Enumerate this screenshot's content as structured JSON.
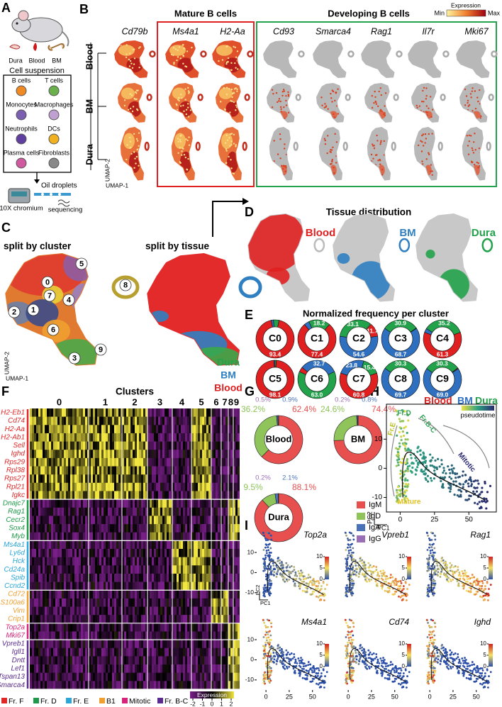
{
  "figure": {
    "panel_labels": [
      "A",
      "B",
      "C",
      "D",
      "E",
      "F",
      "G",
      "H",
      "I"
    ],
    "A": {
      "tissues": [
        "Dura",
        "Blood",
        "BM"
      ],
      "suspension": "Cell suspension",
      "cells": [
        "B cells",
        "T cells",
        "Monocytes",
        "Macrophages",
        "Neutrophils",
        "DCs",
        "Plasma cells",
        "Fibroblasts"
      ],
      "droplets": "Oil droplets",
      "chromium": "10X chromium",
      "sequencing": "sequencing"
    },
    "B": {
      "groups": [
        "Mature B cells",
        "Developing B cells"
      ],
      "genes": [
        "Cd79b",
        "Ms4a1",
        "H2-Aa",
        "Cd93",
        "Smarca4",
        "Rag1",
        "Il7r",
        "Mki67"
      ],
      "rows": [
        "Blood",
        "BM",
        "Dura"
      ],
      "legend_title": "Expression",
      "legend_ends": [
        "Min",
        "Max"
      ],
      "xlabel": "UMAP-1",
      "ylabel": "UMAP-2"
    },
    "C": {
      "titles": [
        "split by cluster",
        "split by tissue"
      ],
      "clusters": [
        "0",
        "1",
        "2",
        "3",
        "4",
        "5",
        "6",
        "7",
        "8",
        "9"
      ],
      "tissues": [
        "Dura",
        "BM",
        "Blood"
      ],
      "xlabel": "UMAP-1",
      "ylabel": "UMAP-2"
    },
    "D": {
      "title": "Tissue distribution",
      "tissues": [
        "Blood",
        "BM",
        "Dura"
      ]
    },
    "F": {
      "title": "Clusters",
      "clusters": [
        "0",
        "1",
        "2",
        "3",
        "4",
        "5",
        "6",
        "7",
        "8",
        "9"
      ],
      "legend": [
        "Fr. F",
        "Fr. D",
        "Fr. E",
        "B1",
        "Mitotic",
        "Fr. B-C"
      ],
      "legend_colors": [
        "#e02828",
        "#1f9a4a",
        "#2aa6d8",
        "#f0a030",
        "#d6247a",
        "#5b2c8f"
      ],
      "gene_groups": [
        [
          "H2-Eb1",
          "Cd74",
          "H2-Aa",
          "H2-Ab1",
          "Sell",
          "Ighd",
          "Rps29",
          "Rpl38",
          "Rps27",
          "Rpl21",
          "Igkc"
        ],
        [
          "Dnajc7",
          "Rag1",
          "Cecr2",
          "Sox4",
          "Myb"
        ],
        [
          "Ms4a1",
          "Ly6d",
          "Hck",
          "Cd24a",
          "Spib",
          "Ccnd2"
        ],
        [
          "Cd72",
          "S100a6",
          "Vim",
          "Crip1"
        ],
        [
          "Top2a",
          "Mki67"
        ],
        [
          "Vpreb1",
          "Igll1",
          "Dntt",
          "Lef1",
          "Tspan13",
          "Smarca4"
        ]
      ],
      "colorbar_title": "Expression",
      "colorbar_ticks": [
        -2,
        -1,
        0,
        1,
        2
      ]
    }
  },
  "chart_data": [
    {
      "type": "pie",
      "title": "Normalized frequency per cluster",
      "categories": [
        "C0",
        "C1",
        "C2",
        "C3",
        "C4",
        "C5",
        "C6",
        "C7",
        "C8",
        "C9"
      ],
      "series": [
        {
          "name": "Blood",
          "color": "#e02020",
          "values": [
            93.4,
            77.4,
            11.7,
            0.4,
            61.3,
            98.1,
            4.3,
            60.8,
            0,
            0.7
          ],
          "value_labels": [
            "93.4",
            "77.4",
            "11.7",
            null,
            "61.3",
            "98.1",
            null,
            "60.8",
            null,
            null
          ]
        },
        {
          "name": "BM",
          "color": "#2f6fc0",
          "values": [
            2.0,
            4.4,
            54.6,
            68.7,
            3.5,
            0.9,
            32.7,
            23.8,
            69.7,
            69.0
          ],
          "value_labels": [
            null,
            null,
            "54.6",
            "68.7",
            null,
            null,
            "32.7",
            "23.8",
            "69.7",
            "69.0"
          ]
        },
        {
          "name": "Dura",
          "color": "#22a24a",
          "values": [
            4.6,
            18.2,
            33.1,
            30.9,
            35.2,
            1.0,
            63.0,
            15.4,
            30.3,
            30.3
          ],
          "value_labels": [
            null,
            "18.2",
            "33.1",
            "30.9",
            "35.2",
            null,
            "63.0",
            "15.4",
            "30.3",
            "30.3"
          ]
        }
      ]
    },
    {
      "type": "pie",
      "categories": [
        "Blood",
        "BM",
        "Dura"
      ],
      "series": [
        {
          "name": "IgM",
          "color": "#e8504f",
          "values": [
            62.4,
            74.4,
            88.1
          ],
          "value_labels": [
            "62.4%",
            "74.4%",
            "88.1%"
          ]
        },
        {
          "name": "IgD",
          "color": "#8fc45a",
          "values": [
            36.2,
            24.6,
            9.5
          ],
          "value_labels": [
            "36.2%",
            "24.6%",
            "9.5%"
          ]
        },
        {
          "name": "IgA",
          "color": "#4a72b8",
          "values": [
            0.9,
            0.8,
            2.1
          ],
          "value_labels": [
            "0.9%",
            "0.8%",
            "2.1%"
          ]
        },
        {
          "name": "IgG",
          "color": "#9b6fb5",
          "values": [
            0.5,
            0.2,
            0.2
          ],
          "value_labels": [
            "0.5%",
            "0.2%",
            "0.2%"
          ]
        }
      ]
    },
    {
      "type": "scatter",
      "xlabel": "PC1",
      "ylabel": "PC2",
      "xlim": [
        -10,
        70
      ],
      "ylim": [
        -15,
        22
      ],
      "xticks": [
        0,
        25,
        50
      ],
      "yticks": [
        -10,
        0,
        10
      ],
      "legend_title": "pseudotime",
      "annotations": [
        "Fr.E",
        "Fr.D",
        "Fr.B-C",
        "Mitotic",
        "Mature"
      ]
    },
    {
      "type": "scatter",
      "titles": [
        "Top2a",
        "Vpreb1",
        "Rag1",
        "Ms4a1",
        "Cd74",
        "Ighd"
      ],
      "xlabel": "PC1",
      "ylabel": "PC2",
      "xlim": [
        -10,
        70
      ],
      "ylim": [
        -15,
        22
      ],
      "xticks": [
        0,
        25,
        50
      ],
      "yticks": [
        -10,
        0,
        10
      ],
      "colorbar_ticks": [
        0,
        5,
        10
      ]
    }
  ]
}
